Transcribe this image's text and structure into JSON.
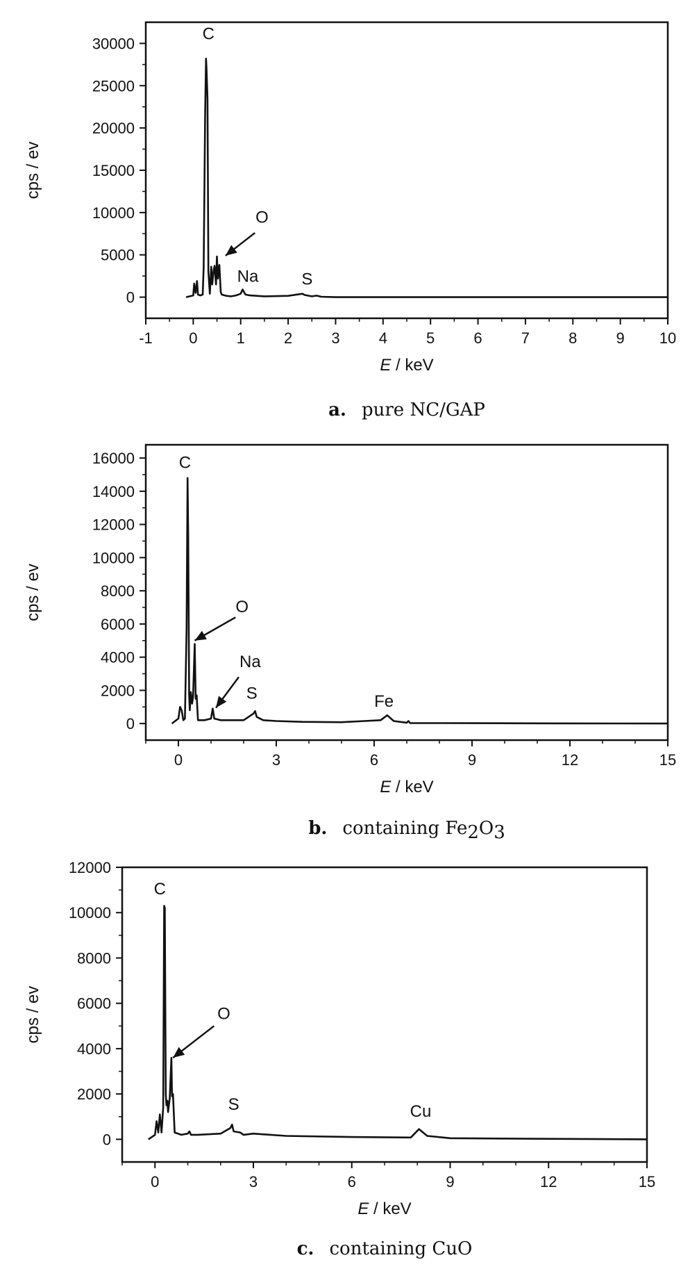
{
  "chart_data": [
    {
      "type": "line",
      "caption_letter": "a.",
      "caption": "pure NC/GAP",
      "xlabel_italic": "E",
      "xlabel_rest": " / keV",
      "ylabel": "cps / ev",
      "xlim": [
        -1,
        10
      ],
      "ylim": [
        -2500,
        32500
      ],
      "xticks": [
        -1,
        0,
        1,
        2,
        3,
        4,
        5,
        6,
        7,
        8,
        9,
        10
      ],
      "xtick_labels": [
        "-1",
        "0",
        "1",
        "2",
        "3",
        "4",
        "5",
        "6",
        "7",
        "8",
        "9",
        "10"
      ],
      "yticks": [
        0,
        5000,
        10000,
        15000,
        20000,
        25000,
        30000
      ],
      "ytick_labels": [
        "0",
        "5000",
        "10000",
        "15000",
        "20000",
        "25000",
        "30000"
      ],
      "series": [
        {
          "x": [
            -0.15,
            0,
            0.02,
            0.05,
            0.08,
            0.1,
            0.15,
            0.2,
            0.22,
            0.25,
            0.27,
            0.28,
            0.3,
            0.32,
            0.35,
            0.38,
            0.4,
            0.43,
            0.45,
            0.48,
            0.5,
            0.52,
            0.55,
            0.58,
            0.6,
            0.7,
            0.8,
            0.9,
            1.0,
            1.04,
            1.1,
            1.2,
            1.5,
            2.0,
            2.3,
            2.35,
            2.5,
            2.6,
            2.7,
            3.0,
            4.0,
            6.0,
            8.0,
            10.0
          ],
          "y": [
            0,
            200,
            1600,
            500,
            1900,
            300,
            200,
            300,
            3500,
            21500,
            28200,
            27000,
            23500,
            3000,
            400,
            3600,
            1500,
            3200,
            3700,
            1500,
            4800,
            2200,
            3800,
            600,
            300,
            150,
            100,
            200,
            400,
            900,
            300,
            200,
            100,
            150,
            400,
            250,
            100,
            180,
            50,
            0,
            0,
            0,
            0,
            0
          ]
        }
      ],
      "peak_labels": [
        {
          "text": "C",
          "x": 0.32,
          "y": 30500
        },
        {
          "text": "O",
          "x": 1.45,
          "y": 8800
        },
        {
          "text": "Na",
          "x": 1.15,
          "y": 1800
        },
        {
          "text": "S",
          "x": 2.4,
          "y": 1500
        }
      ],
      "arrows": [
        {
          "from_x": 1.3,
          "from_y": 7600,
          "to_x": 0.68,
          "to_y": 4900
        }
      ]
    },
    {
      "type": "line",
      "caption_letter": "b.",
      "caption": "containing Fe",
      "caption_sub1": "2",
      "caption_mid": "O",
      "caption_sub2": "3",
      "xlabel_italic": "E",
      "xlabel_rest": " / keV",
      "ylabel": "cps / ev",
      "xlim": [
        -1,
        15
      ],
      "ylim": [
        -1000,
        16800
      ],
      "xticks": [
        0,
        3,
        6,
        9,
        12,
        15
      ],
      "xtick_labels": [
        "0",
        "3",
        "6",
        "9",
        "12",
        "15"
      ],
      "yticks": [
        0,
        2000,
        4000,
        6000,
        8000,
        10000,
        12000,
        14000,
        16000
      ],
      "ytick_labels": [
        "0",
        "2000",
        "4000",
        "6000",
        "8000",
        "10000",
        "12000",
        "14000",
        "16000"
      ],
      "series": [
        {
          "x": [
            -0.2,
            0,
            0.05,
            0.1,
            0.15,
            0.2,
            0.25,
            0.28,
            0.3,
            0.33,
            0.35,
            0.38,
            0.42,
            0.45,
            0.5,
            0.53,
            0.56,
            0.6,
            0.8,
            1.0,
            1.05,
            1.1,
            1.3,
            2.0,
            2.3,
            2.35,
            2.4,
            2.6,
            3.0,
            3.8,
            5.0,
            6.2,
            6.4,
            6.6,
            7.0,
            7.05,
            7.1,
            9.0,
            12.0,
            15.0
          ],
          "y": [
            0,
            300,
            1000,
            800,
            200,
            300,
            5700,
            14800,
            11500,
            1700,
            800,
            1900,
            1200,
            1600,
            4800,
            1500,
            1700,
            200,
            200,
            300,
            900,
            300,
            200,
            200,
            600,
            750,
            400,
            200,
            150,
            100,
            80,
            200,
            500,
            150,
            50,
            150,
            30,
            20,
            10,
            0
          ]
        }
      ],
      "peak_labels": [
        {
          "text": "C",
          "x": 0.2,
          "y": 15400
        },
        {
          "text": "O",
          "x": 1.95,
          "y": 6700
        },
        {
          "text": "Na",
          "x": 2.2,
          "y": 3400
        },
        {
          "text": "S",
          "x": 2.25,
          "y": 1500
        },
        {
          "text": "Fe",
          "x": 6.3,
          "y": 1000
        }
      ],
      "arrows": [
        {
          "from_x": 1.75,
          "from_y": 6400,
          "to_x": 0.5,
          "to_y": 5000
        },
        {
          "from_x": 1.85,
          "from_y": 2800,
          "to_x": 1.15,
          "to_y": 950
        }
      ]
    },
    {
      "type": "line",
      "caption_letter": "c.",
      "caption": "containing CuO",
      "xlabel_italic": "E",
      "xlabel_rest": " / keV",
      "ylabel": "cps / ev",
      "xlim": [
        -1,
        15
      ],
      "ylim": [
        -1000,
        12000
      ],
      "xticks": [
        0,
        3,
        6,
        9,
        12,
        15
      ],
      "xtick_labels": [
        "0",
        "3",
        "6",
        "9",
        "12",
        "15"
      ],
      "yticks": [
        0,
        2000,
        4000,
        6000,
        8000,
        10000,
        12000
      ],
      "ytick_labels": [
        "0",
        "2000",
        "4000",
        "6000",
        "8000",
        "10000",
        "12000"
      ],
      "series": [
        {
          "x": [
            -0.2,
            0,
            0.05,
            0.1,
            0.15,
            0.2,
            0.25,
            0.28,
            0.3,
            0.33,
            0.35,
            0.38,
            0.4,
            0.45,
            0.5,
            0.52,
            0.55,
            0.6,
            0.8,
            1.0,
            1.05,
            1.1,
            1.3,
            2.0,
            2.3,
            2.35,
            2.4,
            2.6,
            2.7,
            3.0,
            4.0,
            6.0,
            7.8,
            8.05,
            8.3,
            9.0,
            12.0,
            15.0
          ],
          "y": [
            0,
            200,
            800,
            300,
            1100,
            300,
            1400,
            10300,
            10200,
            2000,
            1500,
            1700,
            1200,
            1800,
            3600,
            1900,
            2000,
            300,
            200,
            250,
            350,
            200,
            200,
            250,
            500,
            650,
            350,
            300,
            200,
            250,
            150,
            100,
            80,
            450,
            150,
            50,
            20,
            0
          ]
        }
      ],
      "peak_labels": [
        {
          "text": "C",
          "x": 0.15,
          "y": 10800
        },
        {
          "text": "O",
          "x": 2.1,
          "y": 5300
        },
        {
          "text": "S",
          "x": 2.4,
          "y": 1300
        },
        {
          "text": "Cu",
          "x": 8.1,
          "y": 1000
        }
      ],
      "arrows": [
        {
          "from_x": 1.8,
          "from_y": 5000,
          "to_x": 0.55,
          "to_y": 3600
        }
      ]
    }
  ]
}
